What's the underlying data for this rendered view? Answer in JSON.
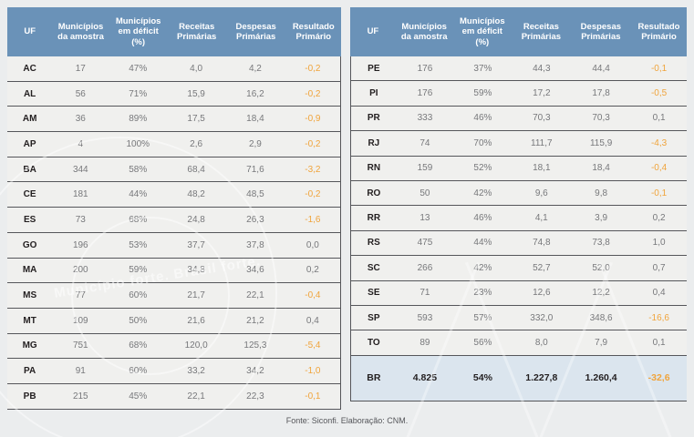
{
  "page": {
    "footer": "Fonte: Siconfi. Elaboração: CNM.",
    "watermark_text": "Município forte. Brasil forte."
  },
  "colors": {
    "page_bg": "#EBEDEE",
    "header_bg": "#6A92B8",
    "header_text": "#FFFFFF",
    "row_bg": "#F0F0EE",
    "separator": "#55565A",
    "uf_text": "#231F20",
    "value_text": "#77787B",
    "negative_value": "#F0A43C",
    "total_row_bg": "#DBE5EE"
  },
  "table": {
    "headers": [
      "UF",
      "Municípios da amostra",
      "Municípios em déficit (%)",
      "Receitas Primárias",
      "Despesas Primárias",
      "Resultado Primário"
    ],
    "left_rows": [
      [
        "AC",
        "17",
        "47%",
        "4,0",
        "4,2",
        "-0,2"
      ],
      [
        "AL",
        "56",
        "71%",
        "15,9",
        "16,2",
        "-0,2"
      ],
      [
        "AM",
        "36",
        "89%",
        "17,5",
        "18,4",
        "-0,9"
      ],
      [
        "AP",
        "4",
        "100%",
        "2,6",
        "2,9",
        "-0,2"
      ],
      [
        "BA",
        "344",
        "58%",
        "68,4",
        "71,6",
        "-3,2"
      ],
      [
        "CE",
        "181",
        "44%",
        "48,2",
        "48,5",
        "-0,2"
      ],
      [
        "ES",
        "73",
        "68%",
        "24,8",
        "26,3",
        "-1,6"
      ],
      [
        "GO",
        "196",
        "53%",
        "37,7",
        "37,8",
        "0,0"
      ],
      [
        "MA",
        "200",
        "59%",
        "34,8",
        "34,6",
        "0,2"
      ],
      [
        "MS",
        "77",
        "60%",
        "21,7",
        "22,1",
        "-0,4"
      ],
      [
        "MT",
        "109",
        "50%",
        "21,6",
        "21,2",
        "0,4"
      ],
      [
        "MG",
        "751",
        "68%",
        "120,0",
        "125,3",
        "-5,4"
      ],
      [
        "PA",
        "91",
        "60%",
        "33,2",
        "34,2",
        "-1,0"
      ],
      [
        "PB",
        "215",
        "45%",
        "22,1",
        "22,3",
        "-0,1"
      ]
    ],
    "right_rows": [
      [
        "PE",
        "176",
        "37%",
        "44,3",
        "44,4",
        "-0,1"
      ],
      [
        "PI",
        "176",
        "59%",
        "17,2",
        "17,8",
        "-0,5"
      ],
      [
        "PR",
        "333",
        "46%",
        "70,3",
        "70,3",
        "0,1"
      ],
      [
        "RJ",
        "74",
        "70%",
        "111,7",
        "115,9",
        "-4,3"
      ],
      [
        "RN",
        "159",
        "52%",
        "18,1",
        "18,4",
        "-0,4"
      ],
      [
        "RO",
        "50",
        "42%",
        "9,6",
        "9,8",
        "-0,1"
      ],
      [
        "RR",
        "13",
        "46%",
        "4,1",
        "3,9",
        "0,2"
      ],
      [
        "RS",
        "475",
        "44%",
        "74,8",
        "73,8",
        "1,0"
      ],
      [
        "SC",
        "266",
        "42%",
        "52,7",
        "52,0",
        "0,7"
      ],
      [
        "SE",
        "71",
        "23%",
        "12,6",
        "12,2",
        "0,4"
      ],
      [
        "SP",
        "593",
        "57%",
        "332,0",
        "348,6",
        "-16,6"
      ],
      [
        "TO",
        "89",
        "56%",
        "8,0",
        "7,9",
        "0,1"
      ]
    ],
    "total_row": [
      "BR",
      "4.825",
      "54%",
      "1.227,8",
      "1.260,4",
      "-32,6"
    ]
  }
}
